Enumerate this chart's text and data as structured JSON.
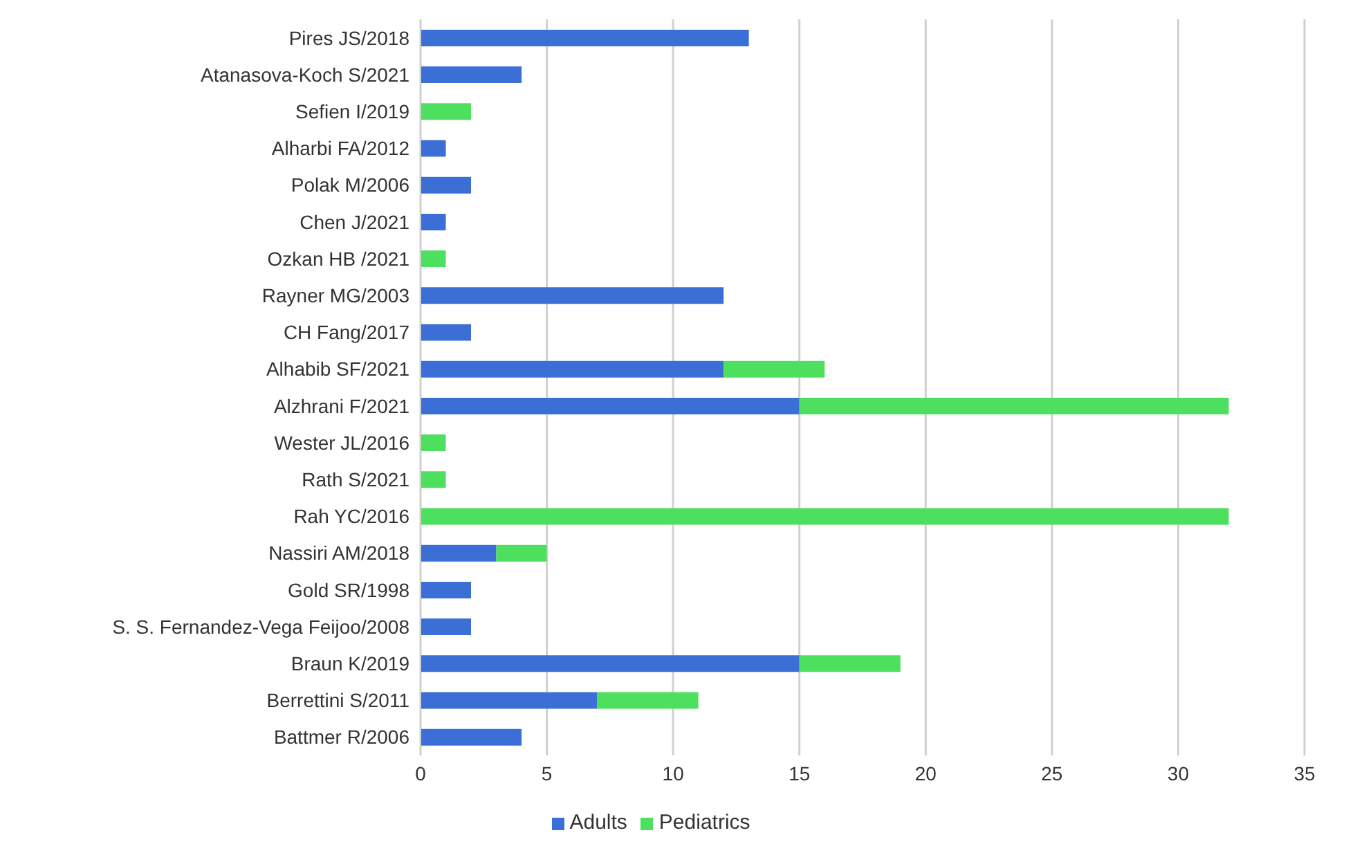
{
  "chart_data": {
    "type": "bar",
    "orientation": "horizontal",
    "stacked": true,
    "categories": [
      "Pires JS/2018",
      "Atanasova-Koch S/2021",
      "Sefien I/2019",
      "Alharbi FA/2012",
      "Polak M/2006",
      "Chen J/2021",
      "Ozkan HB /2021",
      "Rayner MG/2003",
      "CH Fang/2017",
      "Alhabib SF/2021",
      "Alzhrani F/2021",
      "Wester JL/2016",
      "Rath S/2021",
      "Rah YC/2016",
      "Nassiri AM/2018",
      "Gold SR/1998",
      "S. S. Fernandez-Vega Feijoo/2008",
      "Braun K/2019",
      "Berrettini S/2011",
      "Battmer R/2006"
    ],
    "series": [
      {
        "name": "Adults",
        "color": "#3b6fd6",
        "values": [
          13,
          4,
          0,
          1,
          2,
          1,
          0,
          12,
          2,
          12,
          15,
          0,
          0,
          0,
          3,
          2,
          2,
          15,
          7,
          4
        ]
      },
      {
        "name": "Pediatrics",
        "color": "#4ddf5e",
        "values": [
          0,
          0,
          2,
          0,
          0,
          0,
          1,
          0,
          0,
          4,
          17,
          1,
          1,
          32,
          2,
          0,
          0,
          4,
          4,
          0
        ]
      }
    ],
    "xlim": [
      0,
      35
    ],
    "xticks": [
      0,
      5,
      10,
      15,
      20,
      25,
      30,
      35
    ],
    "grid": "x",
    "legend": "bottom"
  }
}
